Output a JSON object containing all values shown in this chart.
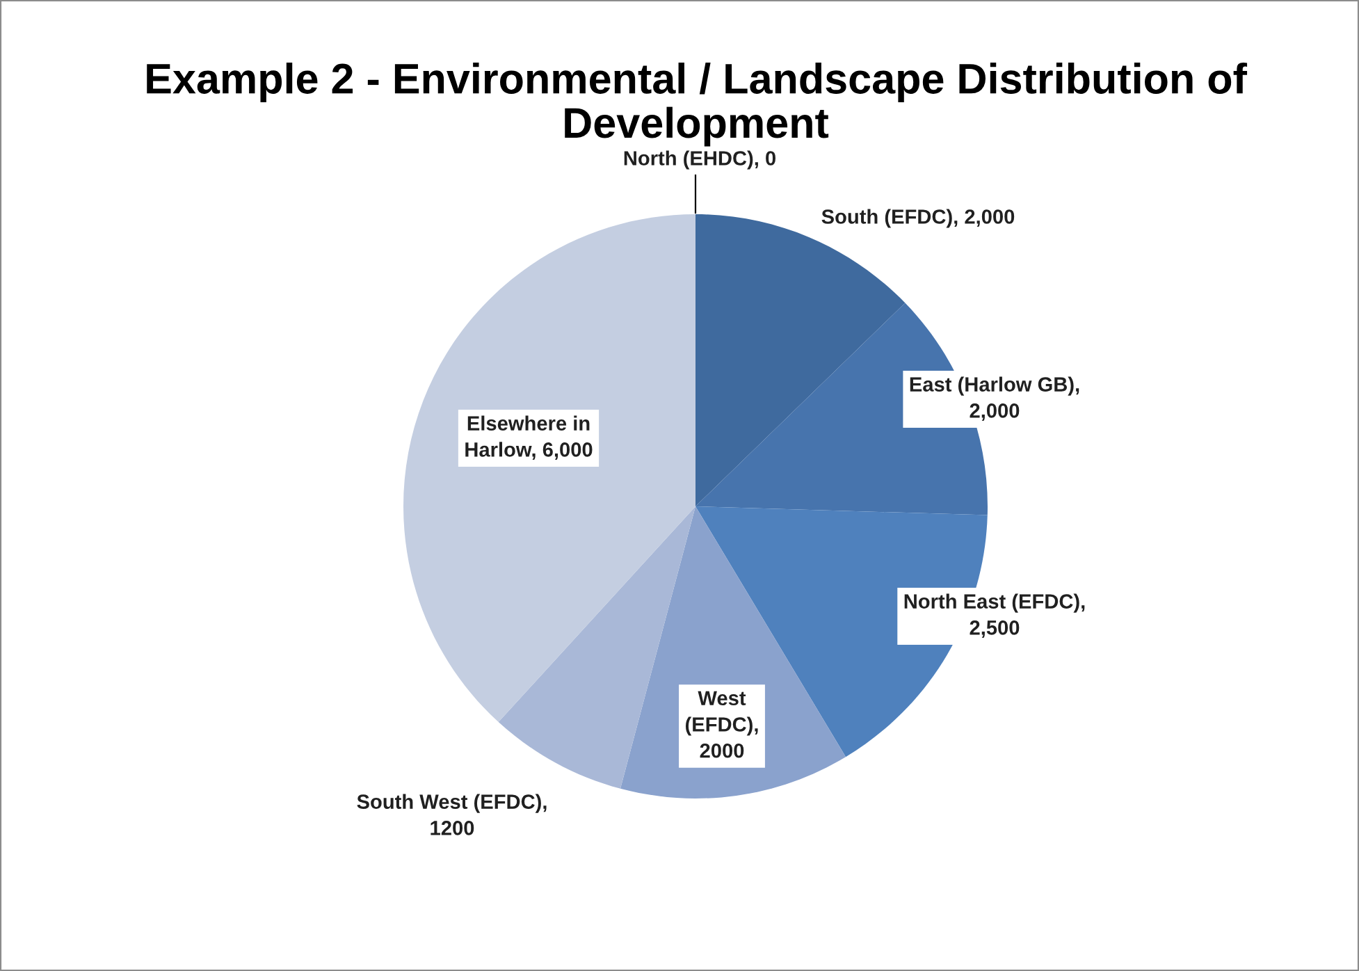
{
  "chart_data": {
    "type": "pie",
    "title": "Example 2 - Environmental / Landscape Distribution of Development",
    "categories": [
      "North (EHDC), 0",
      "South (EFDC), 2,000",
      "East (Harlow GB), 2,000",
      "North East (EFDC), 2,500",
      "West (EFDC), 2000",
      "South West (EFDC), 1200",
      "Elsewhere in Harlow, 6,000"
    ],
    "values": [
      0,
      2000,
      2000,
      2500,
      2000,
      1200,
      6000
    ],
    "colors": [
      "#3a6496",
      "#3f6a9e",
      "#4774ad",
      "#4f81bd",
      "#8aa2cd",
      "#a9b8d7",
      "#c4cee1"
    ]
  }
}
